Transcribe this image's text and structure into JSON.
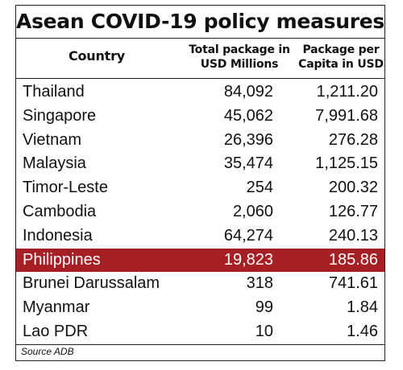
{
  "chart_data": {
    "type": "table",
    "title": "Asean COVID-19 policy measures",
    "columns": [
      "Country",
      "Total package in USD Millions",
      "Package per Capita in USD"
    ],
    "rows": [
      {
        "country": "Thailand",
        "total": "84,092",
        "per_capita": "1,211.20"
      },
      {
        "country": "Singapore",
        "total": "45,062",
        "per_capita": "7,991.68"
      },
      {
        "country": "Vietnam",
        "total": "26,396",
        "per_capita": "276.28"
      },
      {
        "country": "Malaysia",
        "total": "35,474",
        "per_capita": "1,125.15"
      },
      {
        "country": "Timor-Leste",
        "total": "254",
        "per_capita": "200.32"
      },
      {
        "country": "Cambodia",
        "total": "2,060",
        "per_capita": "126.77"
      },
      {
        "country": "Indonesia",
        "total": "64,274",
        "per_capita": "240.13"
      },
      {
        "country": "Philippines",
        "total": "19,823",
        "per_capita": "185.86",
        "highlight": true
      },
      {
        "country": "Brunei Darussalam",
        "total": "318",
        "per_capita": "741.61"
      },
      {
        "country": "Myanmar",
        "total": "99",
        "per_capita": "1.84"
      },
      {
        "country": "Lao PDR",
        "total": "10",
        "per_capita": "1.46"
      }
    ],
    "source": "Source ADB",
    "highlight_color": "#a51f24"
  }
}
